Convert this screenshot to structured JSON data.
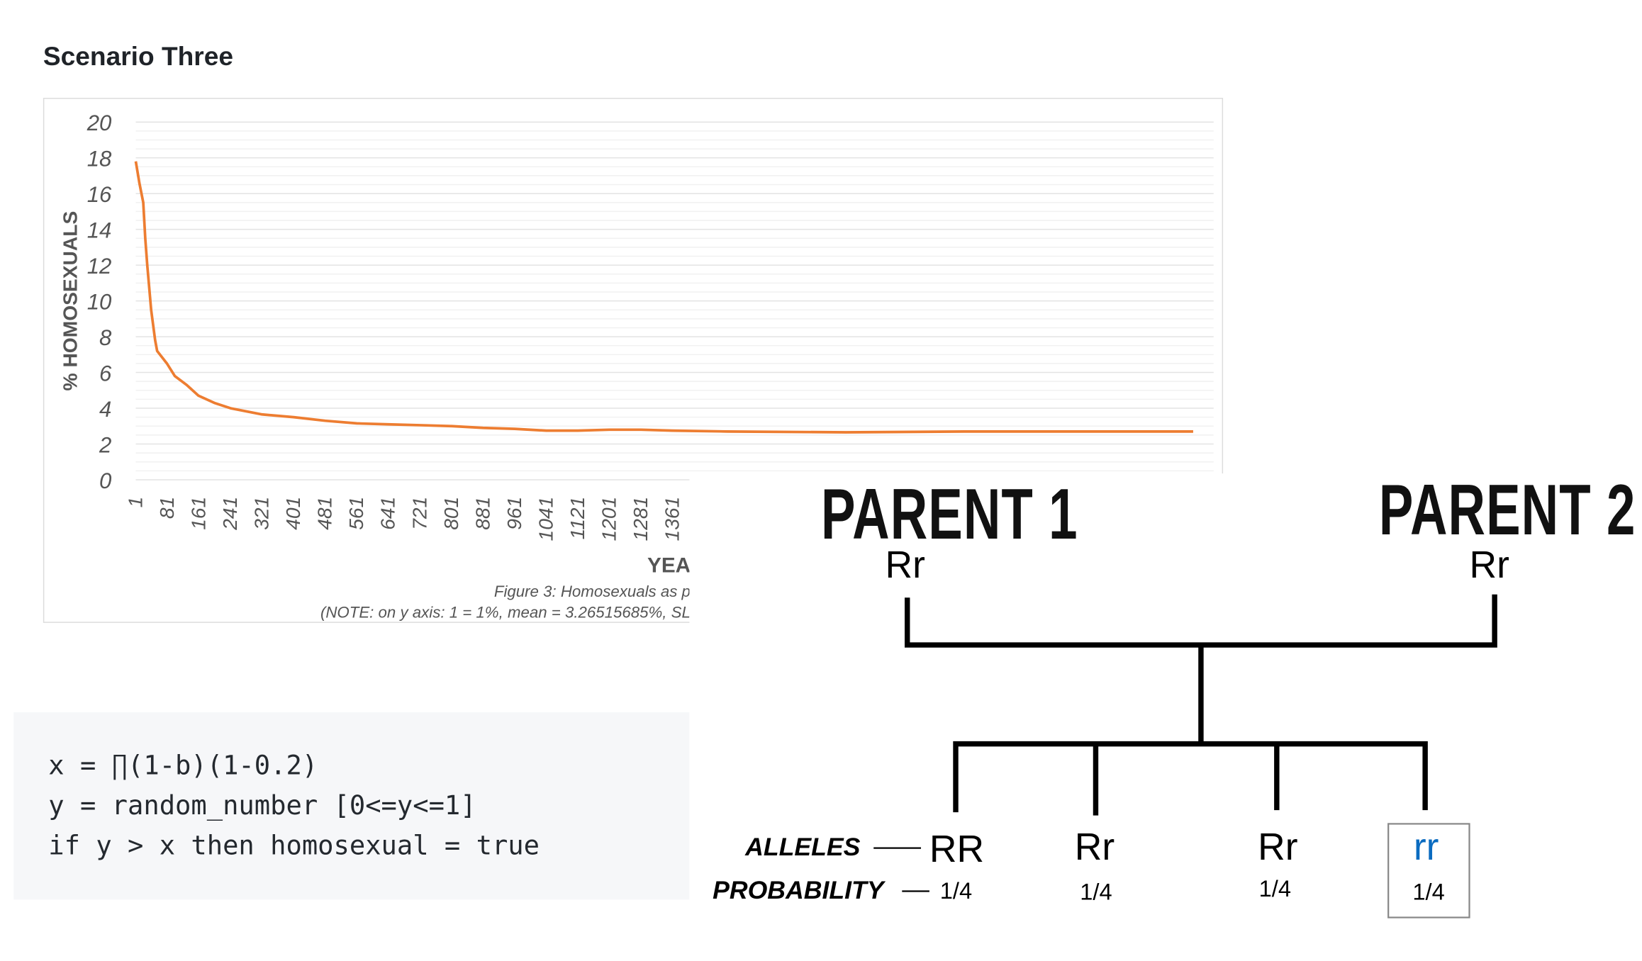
{
  "heading": "Scenario Three",
  "chart_data": {
    "type": "line",
    "ylabel": "% HOMOSEXUALS",
    "xlabel": "YEAR",
    "ylim": [
      0,
      20
    ],
    "yticks": [
      "0",
      "2",
      "4",
      "6",
      "8",
      "10",
      "12",
      "14",
      "16",
      "18",
      "20"
    ],
    "xticks": [
      "1",
      "81",
      "161",
      "241",
      "321",
      "401",
      "481",
      "561",
      "641",
      "721",
      "801",
      "881",
      "961",
      "1041",
      "1121",
      "1201",
      "1281",
      "1361"
    ],
    "grid": true,
    "line_color": "#ed7d31",
    "series": [
      {
        "x": [
          1,
          10,
          20,
          25,
          30,
          40,
          50,
          55,
          80,
          100,
          130,
          160,
          200,
          241,
          321,
          401,
          481,
          561,
          641,
          721,
          801,
          881,
          961,
          1041,
          1121,
          1201,
          1281,
          1361,
          1500,
          1800,
          2100,
          2400,
          2680
        ],
        "y": [
          17.8,
          16.6,
          15.5,
          13.5,
          12,
          9.5,
          7.8,
          7.2,
          6.5,
          5.8,
          5.3,
          4.7,
          4.3,
          4.0,
          3.65,
          3.5,
          3.3,
          3.15,
          3.1,
          3.05,
          3.0,
          2.9,
          2.85,
          2.75,
          2.75,
          2.8,
          2.8,
          2.75,
          2.7,
          2.65,
          2.7,
          2.7,
          2.7
        ]
      }
    ],
    "caption": "Figure 3: Homosexuals as p",
    "note": "(NOTE: on y axis: 1 = 1%, mean = 3.26515685%, SL"
  },
  "code": {
    "lines": [
      "x = ∏(1-b)(1-0.2)",
      "y = random_number [0<=y<=1]",
      "if y > x then homosexual = true"
    ]
  },
  "diagram": {
    "parent1": {
      "title": "PARENT 1",
      "genotype": "Rr"
    },
    "parent2": {
      "title": "PARENT 2",
      "genotype": "Rr"
    },
    "alleles_label": "ALLELES",
    "probability_label": "PROBABILITY",
    "highlight_color": "#0a6bc0",
    "offspring": [
      {
        "genotype": "RR",
        "probability": "1/4"
      },
      {
        "genotype": "Rr",
        "probability": "1/4"
      },
      {
        "genotype": "Rr",
        "probability": "1/4"
      },
      {
        "genotype": "rr",
        "probability": "1/4",
        "highlighted": true
      }
    ]
  }
}
